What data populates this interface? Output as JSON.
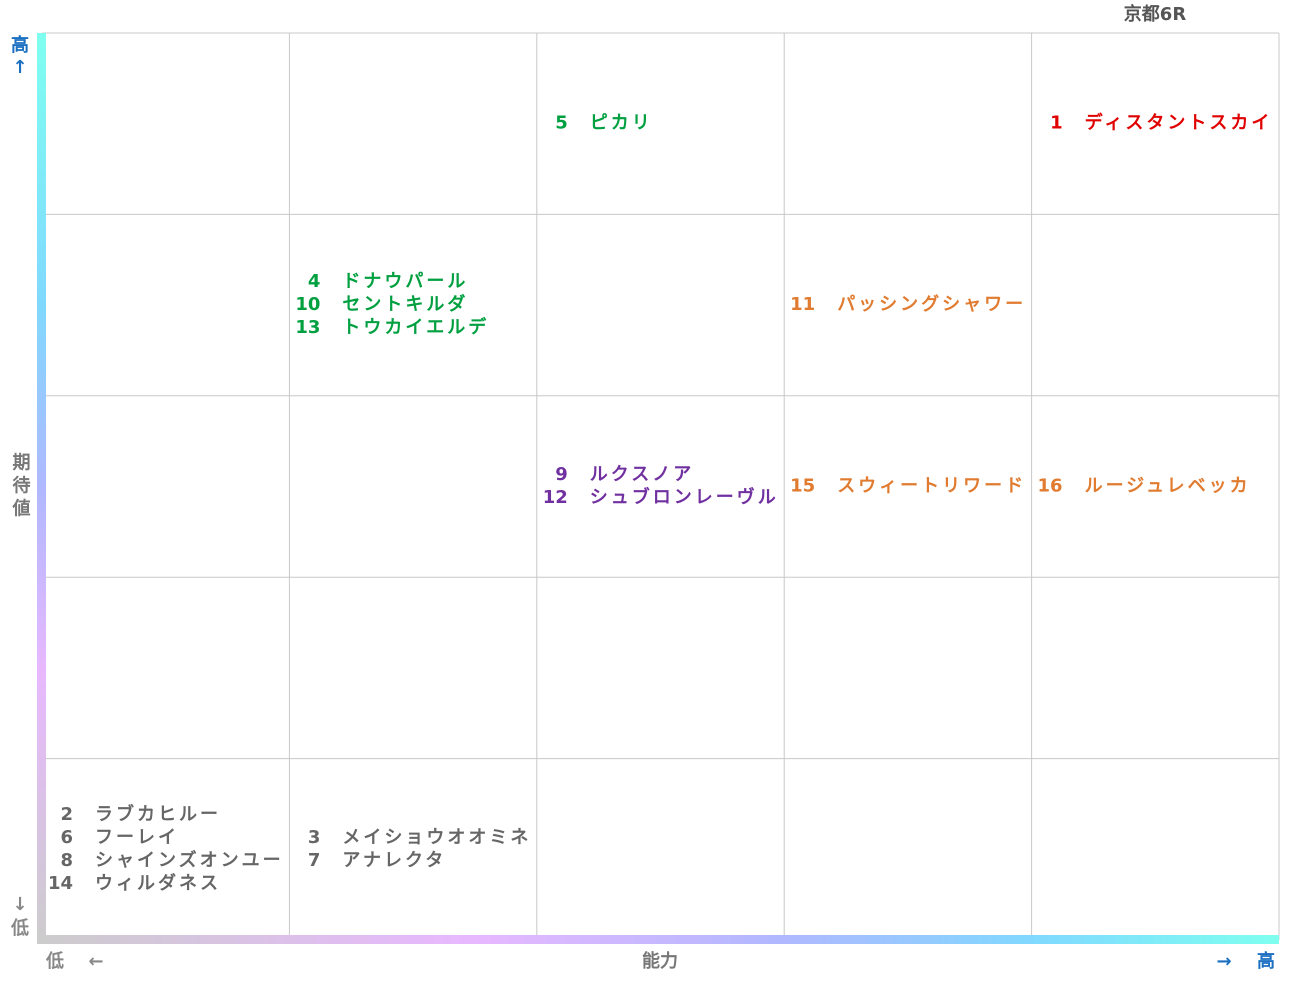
{
  "title": "京都6R",
  "y_axis": {
    "high": "高",
    "high_arrow": "↑",
    "label": "期待値",
    "low_arrow": "↓",
    "low": "低"
  },
  "x_axis": {
    "low": "低",
    "low_arrow": "←",
    "label": "能力",
    "high_arrow": "→",
    "high": "高"
  },
  "grid": {
    "rows": [
      [
        [],
        [],
        [
          {
            "number": "5",
            "name": "ピカリ",
            "color": "#00a040"
          }
        ],
        [],
        [
          {
            "number": "1",
            "name": "ディスタントスカイ",
            "color": "#e00000"
          }
        ]
      ],
      [
        [],
        [
          {
            "number": "4",
            "name": "ドナウパール",
            "color": "#00a040"
          },
          {
            "number": "10",
            "name": "セントキルダ",
            "color": "#00a040"
          },
          {
            "number": "13",
            "name": "トウカイエルデ",
            "color": "#00a040"
          }
        ],
        [],
        [
          {
            "number": "11",
            "name": "パッシングシャワー",
            "color": "#e07b30"
          }
        ],
        []
      ],
      [
        [],
        [],
        [
          {
            "number": "9",
            "name": "ルクスノア",
            "color": "#7030a0"
          },
          {
            "number": "12",
            "name": "シュブロンレーヴル",
            "color": "#7030a0"
          }
        ],
        [
          {
            "number": "15",
            "name": "スウィートリワード",
            "color": "#e07b30"
          }
        ],
        [
          {
            "number": "16",
            "name": "ルージュレベッカ",
            "color": "#e07b30"
          }
        ]
      ],
      [
        [],
        [],
        [],
        [],
        []
      ],
      [
        [
          {
            "number": "2",
            "name": "ラブカヒルー",
            "color": "#666666"
          },
          {
            "number": "6",
            "name": "フーレイ",
            "color": "#666666"
          },
          {
            "number": "8",
            "name": "シャインズオンユー",
            "color": "#666666"
          },
          {
            "number": "14",
            "name": "ウィルダネス",
            "color": "#666666"
          }
        ],
        [
          {
            "number": "3",
            "name": "メイショウオオミネ",
            "color": "#666666"
          },
          {
            "number": "7",
            "name": "アナレクタ",
            "color": "#666666"
          }
        ],
        [],
        [],
        []
      ]
    ]
  }
}
